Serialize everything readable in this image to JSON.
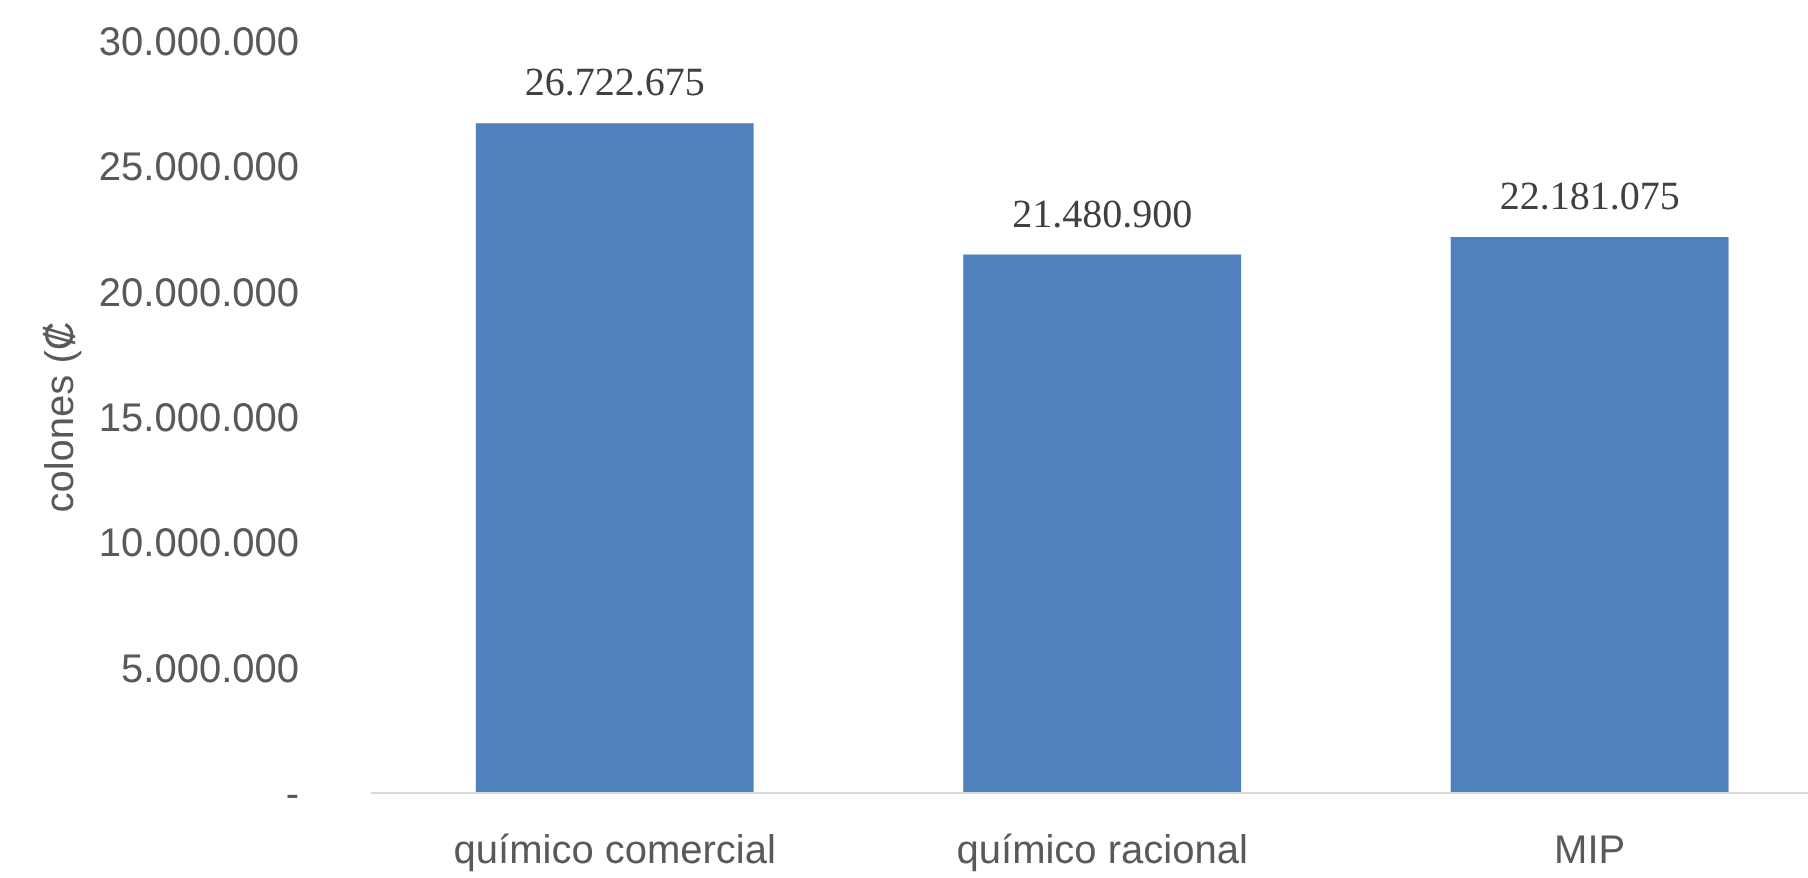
{
  "chart_data": {
    "type": "bar",
    "ylabel": "colones (₡",
    "categories": [
      "químico comercial",
      "químico racional",
      "MIP"
    ],
    "values": [
      26722675,
      21480900,
      22181075
    ],
    "color": "#4f81bd",
    "value_labels": [
      "26.722.675",
      "21.480.900",
      "22.181.075"
    ],
    "ylim": [
      0,
      30000000
    ],
    "yticks": [
      {
        "value": 0,
        "label": "-"
      },
      {
        "value": 5000000,
        "label": "5.000.000"
      },
      {
        "value": 10000000,
        "label": "10.000.000"
      },
      {
        "value": 15000000,
        "label": "15.000.000"
      },
      {
        "value": 20000000,
        "label": "20.000.000"
      },
      {
        "value": 25000000,
        "label": "25.000.000"
      },
      {
        "value": 30000000,
        "label": "30.000.000"
      }
    ],
    "grid": false,
    "legend": false
  }
}
